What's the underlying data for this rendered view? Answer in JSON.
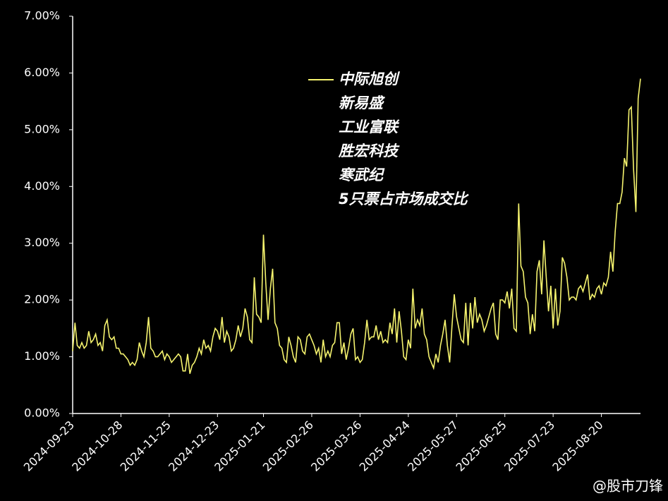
{
  "chart_data": {
    "type": "line",
    "series": [
      {
        "name": [
          "中际旭创",
          "新易盛",
          "工业富联",
          "胜宏科技",
          "寒武纪",
          "5只票占市场成交比"
        ],
        "color": "#f5f36e",
        "values": [
          1.1,
          1.6,
          1.2,
          1.15,
          1.25,
          1.15,
          1.2,
          1.45,
          1.25,
          1.3,
          1.4,
          1.2,
          1.25,
          1.1,
          1.55,
          1.65,
          1.35,
          1.3,
          1.35,
          1.15,
          1.15,
          1.05,
          1.05,
          1.0,
          0.95,
          0.85,
          0.9,
          0.85,
          0.95,
          1.25,
          1.1,
          1.0,
          1.25,
          1.7,
          1.15,
          1.1,
          1.0,
          1.0,
          1.05,
          1.1,
          0.95,
          1.05,
          1.0,
          0.9,
          0.95,
          1.0,
          1.05,
          1.0,
          0.75,
          0.75,
          1.05,
          0.7,
          0.85,
          0.9,
          1.0,
          1.15,
          1.05,
          1.3,
          1.15,
          1.2,
          1.1,
          1.35,
          1.5,
          1.45,
          1.3,
          1.7,
          1.25,
          1.45,
          1.35,
          1.1,
          1.15,
          1.3,
          1.55,
          1.35,
          1.5,
          1.85,
          1.7,
          1.3,
          1.25,
          2.4,
          1.75,
          1.7,
          1.6,
          3.15,
          2.3,
          1.65,
          2.2,
          2.55,
          1.6,
          1.5,
          1.2,
          1.15,
          0.95,
          0.9,
          1.35,
          1.2,
          1.0,
          0.9,
          1.35,
          1.3,
          1.1,
          1.05,
          1.35,
          1.4,
          1.3,
          1.2,
          1.05,
          1.15,
          0.9,
          1.3,
          1.0,
          1.1,
          1.0,
          1.2,
          1.25,
          1.6,
          1.6,
          1.05,
          1.25,
          0.95,
          1.15,
          1.4,
          1.5,
          0.95,
          1.0,
          0.9,
          0.95,
          1.25,
          1.65,
          1.3,
          1.35,
          1.35,
          1.55,
          1.3,
          1.45,
          1.25,
          1.3,
          1.25,
          1.6,
          1.4,
          1.85,
          1.25,
          1.8,
          1.45,
          1.0,
          0.95,
          1.3,
          1.15,
          2.2,
          1.5,
          1.65,
          1.55,
          1.85,
          1.4,
          1.3,
          1.0,
          0.9,
          0.8,
          1.05,
          0.9,
          1.2,
          1.4,
          1.65,
          1.2,
          0.9,
          1.55,
          2.1,
          1.7,
          1.5,
          1.3,
          1.25,
          1.95,
          1.2,
          1.95,
          1.5,
          2.05,
          1.6,
          1.75,
          1.65,
          1.45,
          1.55,
          1.7,
          1.85,
          1.95,
          1.4,
          1.3,
          2.0,
          2.0,
          1.95,
          2.15,
          1.85,
          2.2,
          1.5,
          1.45,
          3.7,
          2.6,
          2.5,
          2.05,
          1.95,
          1.4,
          1.75,
          1.45,
          2.5,
          2.7,
          2.1,
          3.05,
          2.4,
          1.8,
          2.25,
          1.5,
          2.2,
          1.55,
          1.8,
          2.75,
          2.65,
          2.4,
          2.0,
          2.05,
          2.05,
          2.0,
          2.2,
          2.25,
          2.15,
          2.3,
          2.45,
          2.0,
          2.1,
          2.05,
          2.2,
          2.25,
          2.1,
          2.3,
          2.25,
          2.4,
          2.85,
          2.5,
          3.2,
          3.7,
          3.7,
          3.9,
          4.5,
          4.35,
          5.35,
          5.4,
          4.3,
          3.55,
          5.55,
          5.9
        ]
      }
    ],
    "categories": [
      "2024-09-23",
      null,
      null,
      null,
      null,
      null,
      null,
      null,
      null,
      null,
      null,
      null,
      null,
      null,
      null,
      null,
      null,
      null,
      null,
      null,
      null,
      "2024-10-28",
      null,
      null,
      null,
      null,
      null,
      null,
      null,
      null,
      null,
      null,
      null,
      null,
      null,
      null,
      null,
      null,
      null,
      null,
      null,
      null,
      "2024-11-25",
      null,
      null,
      null,
      null,
      null,
      null,
      null,
      null,
      null,
      null,
      null,
      null,
      null,
      null,
      null,
      null,
      null,
      null,
      null,
      null,
      "2024-12-23",
      null,
      null,
      null,
      null,
      null,
      null,
      null,
      null,
      null,
      null,
      null,
      null,
      null,
      null,
      null,
      null,
      null,
      null,
      null,
      "2025-01-21",
      null,
      null,
      null,
      null,
      null,
      null,
      null,
      null,
      null,
      null,
      null,
      null,
      null,
      null,
      null,
      null,
      null,
      null,
      null,
      null,
      "2025-02-26",
      null,
      null,
      null,
      null,
      null,
      null,
      null,
      null,
      null,
      null,
      null,
      null,
      null,
      null,
      null,
      null,
      null,
      null,
      null,
      null,
      "2025-03-26",
      null,
      null,
      null,
      null,
      null,
      null,
      null,
      null,
      null,
      null,
      null,
      null,
      null,
      null,
      null,
      null,
      null,
      null,
      null,
      null,
      "2025-04-24",
      null,
      null,
      null,
      null,
      null,
      null,
      null,
      null,
      null,
      null,
      null,
      null,
      null,
      null,
      null,
      null,
      null,
      null,
      null,
      null,
      "2025-05-27",
      null,
      null,
      null,
      null,
      null,
      null,
      null,
      null,
      null,
      null,
      null,
      null,
      null,
      null,
      null,
      null,
      null,
      null,
      null,
      null,
      "2025-06-25",
      null,
      null,
      null,
      null,
      null,
      null,
      null,
      null,
      null,
      null,
      null,
      null,
      null,
      null,
      null,
      null,
      null,
      null,
      null,
      null,
      "2025-07-23",
      null,
      null,
      null,
      null,
      null,
      null,
      null,
      null,
      null,
      null,
      null,
      null,
      null,
      null,
      null,
      null,
      null,
      null,
      null,
      null,
      "2025-08-20",
      null,
      null,
      null,
      null,
      null,
      null,
      null,
      null,
      null,
      null,
      null,
      null,
      null,
      null,
      null,
      null,
      null
    ],
    "ylim": [
      0,
      7
    ],
    "yticks": [
      {
        "value": 0,
        "label": "0.00%"
      },
      {
        "value": 1,
        "label": "1.00%"
      },
      {
        "value": 2,
        "label": "2.00%"
      },
      {
        "value": 3,
        "label": "3.00%"
      },
      {
        "value": 4,
        "label": "4.00%"
      },
      {
        "value": 5,
        "label": "5.00%"
      },
      {
        "value": 6,
        "label": "6.00%"
      },
      {
        "value": 7,
        "label": "7.00%"
      }
    ],
    "watermark": "@股市刀锋"
  }
}
